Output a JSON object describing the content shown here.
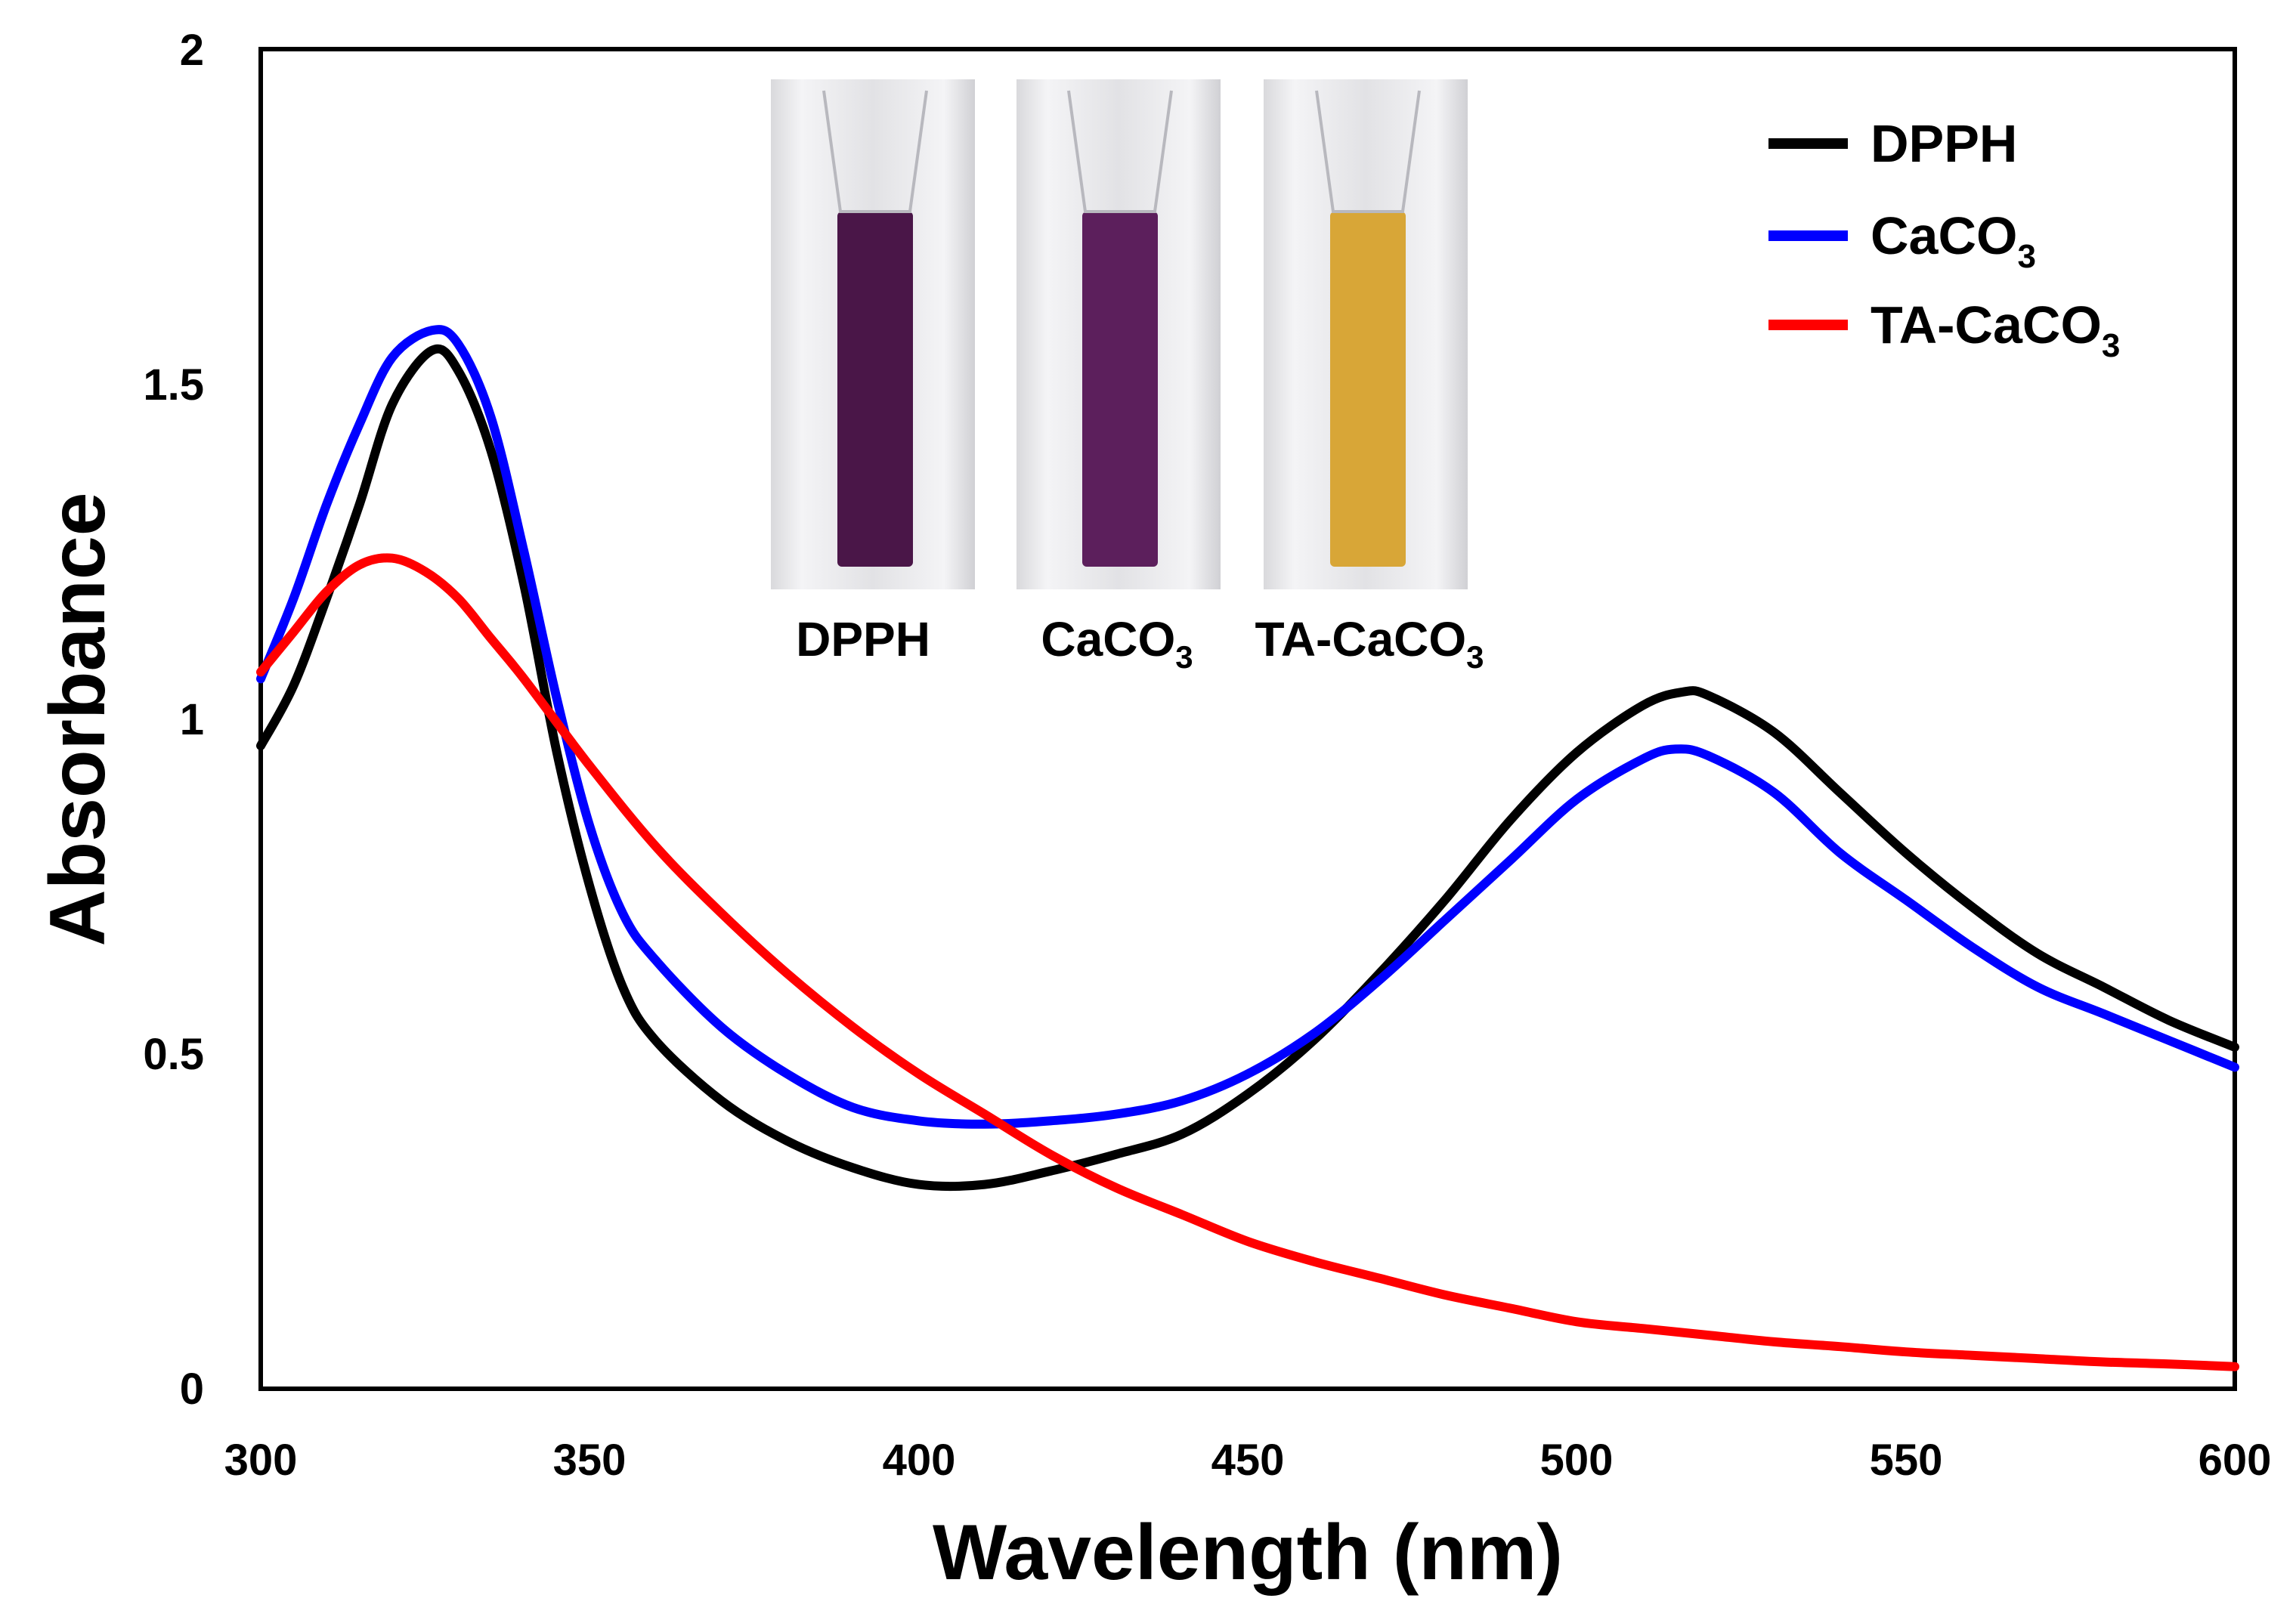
{
  "chart_data": {
    "type": "line",
    "xlabel": "Wavelength (nm)",
    "ylabel": "Absorbance",
    "xlim": [
      300,
      600
    ],
    "ylim": [
      0,
      2
    ],
    "x_ticks": [
      "300",
      "350",
      "400",
      "450",
      "500",
      "550",
      "600"
    ],
    "y_ticks": [
      "0",
      "0.5",
      "1",
      "1.5",
      "2"
    ],
    "x_tick_values": [
      300,
      350,
      400,
      450,
      500,
      550,
      600
    ],
    "y_tick_values": [
      0,
      0.5,
      1,
      1.5,
      2
    ],
    "legend_position": "top-right",
    "series": [
      {
        "name": "DPPH",
        "label_main": "DPPH",
        "label_sub": "",
        "color": "#000000",
        "x": [
          300,
          305,
          310,
          315,
          320,
          326,
          330,
          335,
          340,
          345,
          350,
          355,
          360,
          370,
          380,
          390,
          400,
          410,
          420,
          430,
          440,
          450,
          460,
          470,
          480,
          490,
          500,
          510,
          516,
          520,
          530,
          540,
          550,
          560,
          570,
          580,
          590,
          600
        ],
        "y": [
          0.96,
          1.05,
          1.18,
          1.32,
          1.47,
          1.55,
          1.52,
          1.4,
          1.2,
          0.95,
          0.75,
          0.6,
          0.52,
          0.43,
          0.37,
          0.33,
          0.305,
          0.305,
          0.325,
          0.35,
          0.38,
          0.44,
          0.52,
          0.62,
          0.73,
          0.85,
          0.95,
          1.02,
          1.04,
          1.035,
          0.98,
          0.89,
          0.8,
          0.72,
          0.65,
          0.6,
          0.55,
          0.51
        ]
      },
      {
        "name": "CaCO3",
        "label_main": "CaCO",
        "label_sub": "3",
        "color": "#0000ff",
        "x": [
          300,
          305,
          310,
          315,
          320,
          326,
          330,
          335,
          340,
          345,
          350,
          355,
          360,
          370,
          380,
          390,
          400,
          410,
          420,
          430,
          440,
          450,
          460,
          470,
          480,
          490,
          500,
          510,
          515,
          520,
          530,
          540,
          550,
          560,
          570,
          580,
          590,
          600
        ],
        "y": [
          1.06,
          1.18,
          1.32,
          1.44,
          1.54,
          1.58,
          1.56,
          1.45,
          1.25,
          1.03,
          0.84,
          0.71,
          0.64,
          0.54,
          0.47,
          0.42,
          0.4,
          0.395,
          0.4,
          0.41,
          0.43,
          0.47,
          0.53,
          0.61,
          0.7,
          0.79,
          0.88,
          0.94,
          0.955,
          0.945,
          0.89,
          0.8,
          0.73,
          0.66,
          0.6,
          0.56,
          0.52,
          0.48
        ]
      },
      {
        "name": "TA-CaCO3",
        "label_main": "TA-CaCO",
        "label_sub": "3",
        "color": "#ff0000",
        "x": [
          300,
          305,
          310,
          315,
          320,
          325,
          330,
          335,
          340,
          350,
          360,
          370,
          380,
          390,
          400,
          410,
          420,
          430,
          440,
          450,
          460,
          470,
          480,
          490,
          500,
          510,
          520,
          530,
          540,
          550,
          560,
          570,
          580,
          590,
          600
        ],
        "y": [
          1.07,
          1.13,
          1.19,
          1.23,
          1.24,
          1.22,
          1.18,
          1.12,
          1.06,
          0.93,
          0.81,
          0.71,
          0.62,
          0.54,
          0.47,
          0.41,
          0.35,
          0.3,
          0.26,
          0.22,
          0.19,
          0.165,
          0.14,
          0.12,
          0.1,
          0.09,
          0.08,
          0.07,
          0.063,
          0.055,
          0.05,
          0.045,
          0.04,
          0.037,
          0.033
        ]
      }
    ],
    "inset": {
      "description_labels": [
        {
          "main": "DPPH",
          "sub": ""
        },
        {
          "main": "CaCO",
          "sub": "3"
        },
        {
          "main": "TA-CaCO",
          "sub": "3"
        }
      ],
      "liquid_colors": [
        "#4a1648",
        "#5c1f5c",
        "#d8a637"
      ]
    }
  }
}
